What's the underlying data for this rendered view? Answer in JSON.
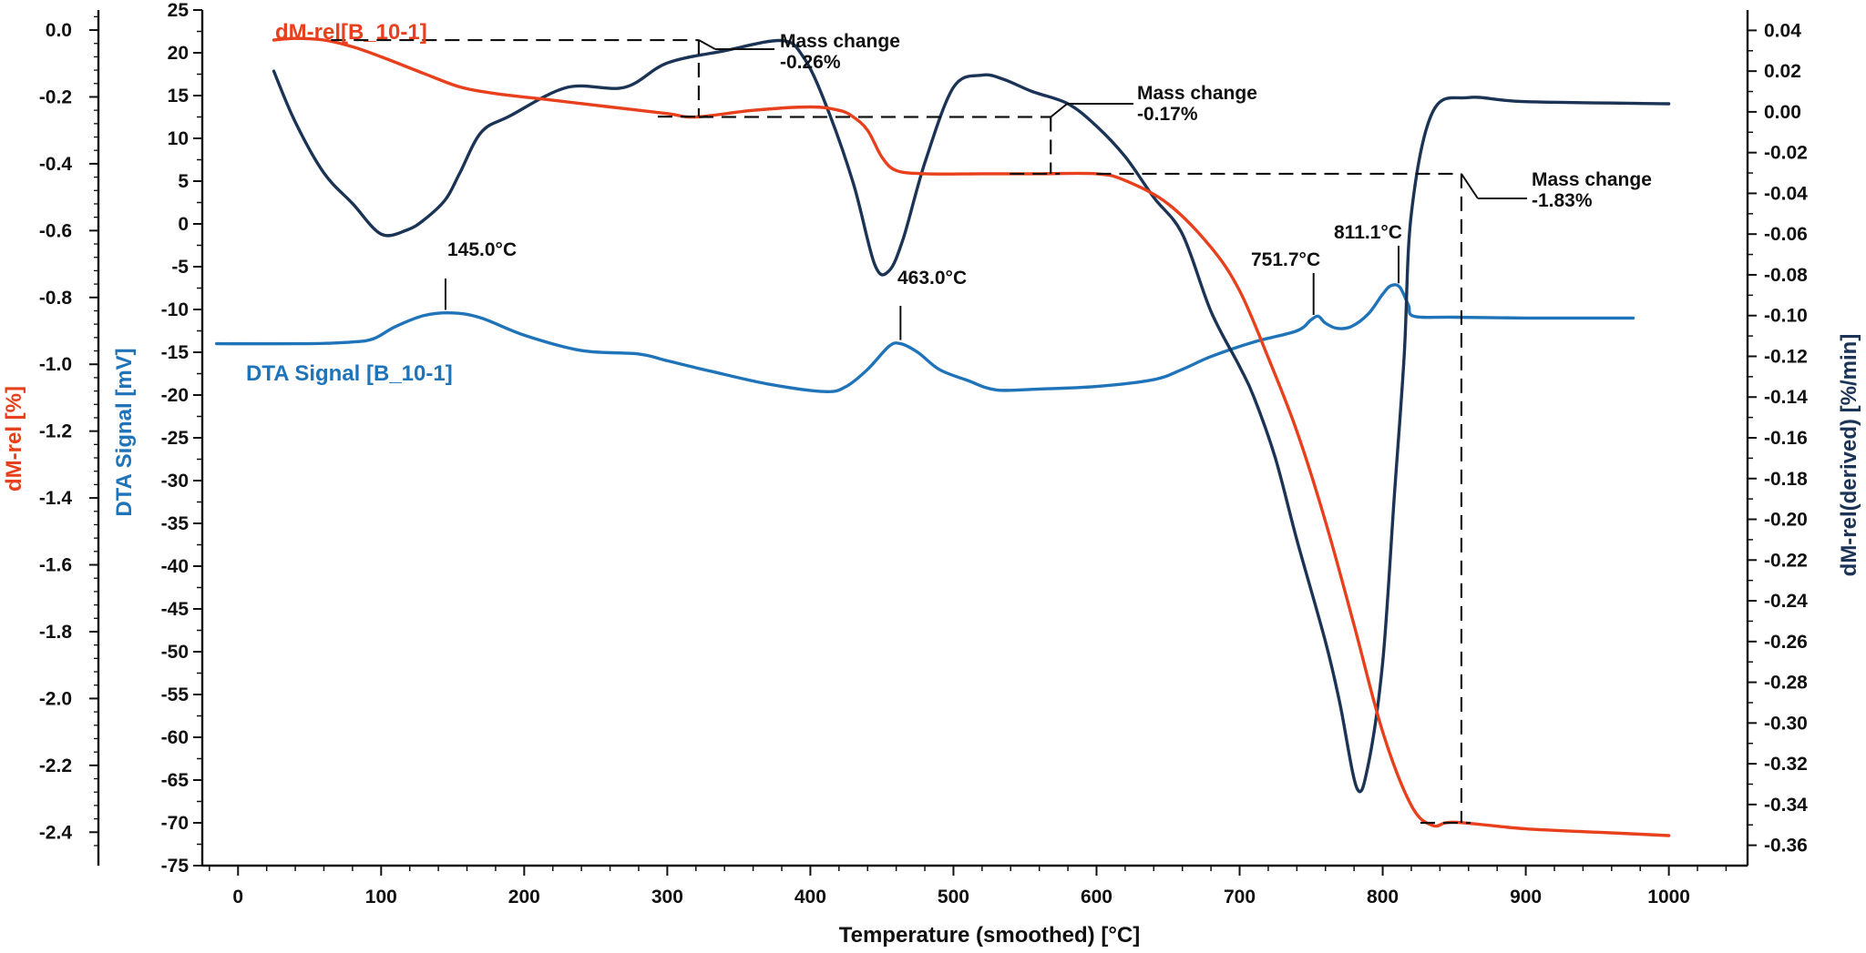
{
  "chart_data": {
    "type": "line",
    "xlabel": "Temperature (smoothed) [°C]",
    "x_ticks": [
      "0",
      "100",
      "200",
      "300",
      "400",
      "500",
      "600",
      "700",
      "800",
      "900",
      "1000"
    ],
    "xlim": [
      -25,
      1055
    ],
    "axes": {
      "mass": {
        "label": "dM-rel [%]",
        "color": "#e8401c",
        "ylim": [
          -2.5,
          0.06
        ],
        "ticks": [
          0.0,
          -0.2,
          -0.4,
          -0.6,
          -0.8,
          -1.0,
          -1.2,
          -1.4,
          -1.6,
          -1.8,
          -2.0,
          -2.2,
          -2.4
        ],
        "tick_labels": [
          "0.0",
          "-0.2",
          "-0.4",
          "-0.6",
          "-0.8",
          "-1.0",
          "-1.2",
          "-1.4",
          "-1.6",
          "-1.8",
          "-2.0",
          "-2.2",
          "-2.4"
        ]
      },
      "dta": {
        "label": "DTA Signal [mV]",
        "color": "#1f74b9",
        "ylim": [
          -75,
          25
        ],
        "ticks": [
          25,
          20,
          15,
          10,
          5,
          0,
          -5,
          -10,
          -15,
          -20,
          -25,
          -30,
          -35,
          -40,
          -45,
          -50,
          -55,
          -60,
          -65,
          -70,
          -75
        ],
        "tick_labels": [
          "25",
          "20",
          "15",
          "10",
          "5",
          "0",
          "-5",
          "-10",
          "-15",
          "-20",
          "-25",
          "-30",
          "-35",
          "-40",
          "-45",
          "-50",
          "-55",
          "-60",
          "-65",
          "-70",
          "-75"
        ]
      },
      "deriv": {
        "label": "dM-rel(derived) [%/min]",
        "color": "#1b3355",
        "ylim": [
          -0.37,
          0.05
        ],
        "ticks": [
          0.04,
          0.02,
          0.0,
          -0.02,
          -0.04,
          -0.06,
          -0.08,
          -0.1,
          -0.12,
          -0.14,
          -0.16,
          -0.18,
          -0.2,
          -0.22,
          -0.24,
          -0.26,
          -0.28,
          -0.3,
          -0.32,
          -0.34,
          -0.36
        ],
        "tick_labels": [
          "0.04",
          "0.02",
          "0.00",
          "-0.02",
          "-0.04",
          "-0.06",
          "-0.08",
          "-0.10",
          "-0.12",
          "-0.14",
          "-0.16",
          "-0.18",
          "-0.20",
          "-0.22",
          "-0.24",
          "-0.26",
          "-0.28",
          "-0.30",
          "-0.32",
          "-0.34",
          "-0.36"
        ]
      }
    },
    "series": [
      {
        "name": "dM-rel[B_10-1]",
        "axis": "mass",
        "color": "#e8401c",
        "x": [
          25,
          40,
          60,
          80,
          100,
          130,
          155,
          180,
          220,
          260,
          300,
          320,
          360,
          400,
          420,
          430,
          440,
          450,
          460,
          480,
          520,
          560,
          600,
          620,
          650,
          680,
          700,
          720,
          740,
          760,
          780,
          800,
          820,
          835,
          850,
          900,
          950,
          1000
        ],
        "y": [
          -0.03,
          -0.025,
          -0.03,
          -0.05,
          -0.08,
          -0.13,
          -0.17,
          -0.19,
          -0.21,
          -0.23,
          -0.25,
          -0.26,
          -0.24,
          -0.23,
          -0.24,
          -0.26,
          -0.3,
          -0.38,
          -0.42,
          -0.43,
          -0.43,
          -0.43,
          -0.43,
          -0.45,
          -0.52,
          -0.65,
          -0.78,
          -0.98,
          -1.2,
          -1.47,
          -1.78,
          -2.1,
          -2.32,
          -2.38,
          -2.37,
          -2.39,
          -2.4,
          -2.41
        ]
      },
      {
        "name": "DTA Signal [B_10-1]",
        "axis": "dta",
        "color": "#1f74b9",
        "x": [
          -15,
          50,
          80,
          95,
          110,
          130,
          150,
          170,
          200,
          240,
          280,
          300,
          330,
          370,
          410,
          425,
          440,
          455,
          463,
          475,
          490,
          510,
          530,
          560,
          600,
          640,
          660,
          680,
          710,
          740,
          750,
          755,
          760,
          768,
          778,
          790,
          800,
          806,
          812,
          818,
          822,
          850,
          900,
          975
        ],
        "y": [
          -14,
          -14,
          -13.8,
          -13.4,
          -12,
          -10.7,
          -10.4,
          -11,
          -13,
          -14.8,
          -15.2,
          -16,
          -17.2,
          -18.7,
          -19.6,
          -19,
          -17,
          -14.3,
          -14,
          -15,
          -17,
          -18.3,
          -19.4,
          -19.3,
          -19,
          -18.2,
          -17,
          -15.5,
          -13.8,
          -12.5,
          -11.2,
          -10.8,
          -11.6,
          -12.2,
          -12,
          -10.5,
          -8.2,
          -7.2,
          -7.4,
          -9.5,
          -10.8,
          -10.9,
          -11,
          -11
        ]
      },
      {
        "name": "dM-rel (derived)",
        "axis": "deriv",
        "color": "#1b3355",
        "x": [
          25,
          40,
          60,
          80,
          100,
          118,
          130,
          145,
          155,
          170,
          190,
          230,
          270,
          300,
          340,
          380,
          395,
          410,
          430,
          445,
          455,
          465,
          480,
          500,
          520,
          535,
          555,
          580,
          600,
          620,
          640,
          660,
          680,
          700,
          710,
          725,
          740,
          760,
          770,
          782,
          790,
          800,
          808,
          815,
          820,
          835,
          860,
          900,
          1000
        ],
        "y": [
          0.02,
          -0.005,
          -0.03,
          -0.045,
          -0.06,
          -0.058,
          -0.053,
          -0.043,
          -0.03,
          -0.01,
          -0.002,
          0.012,
          0.012,
          0.024,
          0.03,
          0.035,
          0.027,
          0.005,
          -0.035,
          -0.075,
          -0.078,
          -0.062,
          -0.025,
          0.012,
          0.018,
          0.016,
          0.01,
          0.004,
          -0.007,
          -0.022,
          -0.042,
          -0.06,
          -0.098,
          -0.125,
          -0.14,
          -0.17,
          -0.21,
          -0.26,
          -0.29,
          -0.332,
          -0.32,
          -0.27,
          -0.19,
          -0.12,
          -0.05,
          0.0,
          0.007,
          0.005,
          0.004
        ]
      }
    ],
    "series_labels": {
      "mass": "dM-rel[B_10-1]",
      "dta": "DTA Signal [B_10-1]"
    },
    "annotations": {
      "peaks": [
        {
          "x": 145,
          "label": "145.0°C"
        },
        {
          "x": 463,
          "label": "463.0°C"
        },
        {
          "x": 751.7,
          "label": "751.7°C"
        },
        {
          "x": 811.1,
          "label": "811.1°C"
        }
      ],
      "mass_changes": [
        {
          "title": "Mass change",
          "value": "-0.26%"
        },
        {
          "title": "Mass change",
          "value": "-0.17%"
        },
        {
          "title": "Mass change",
          "value": "-1.83%"
        }
      ]
    }
  }
}
